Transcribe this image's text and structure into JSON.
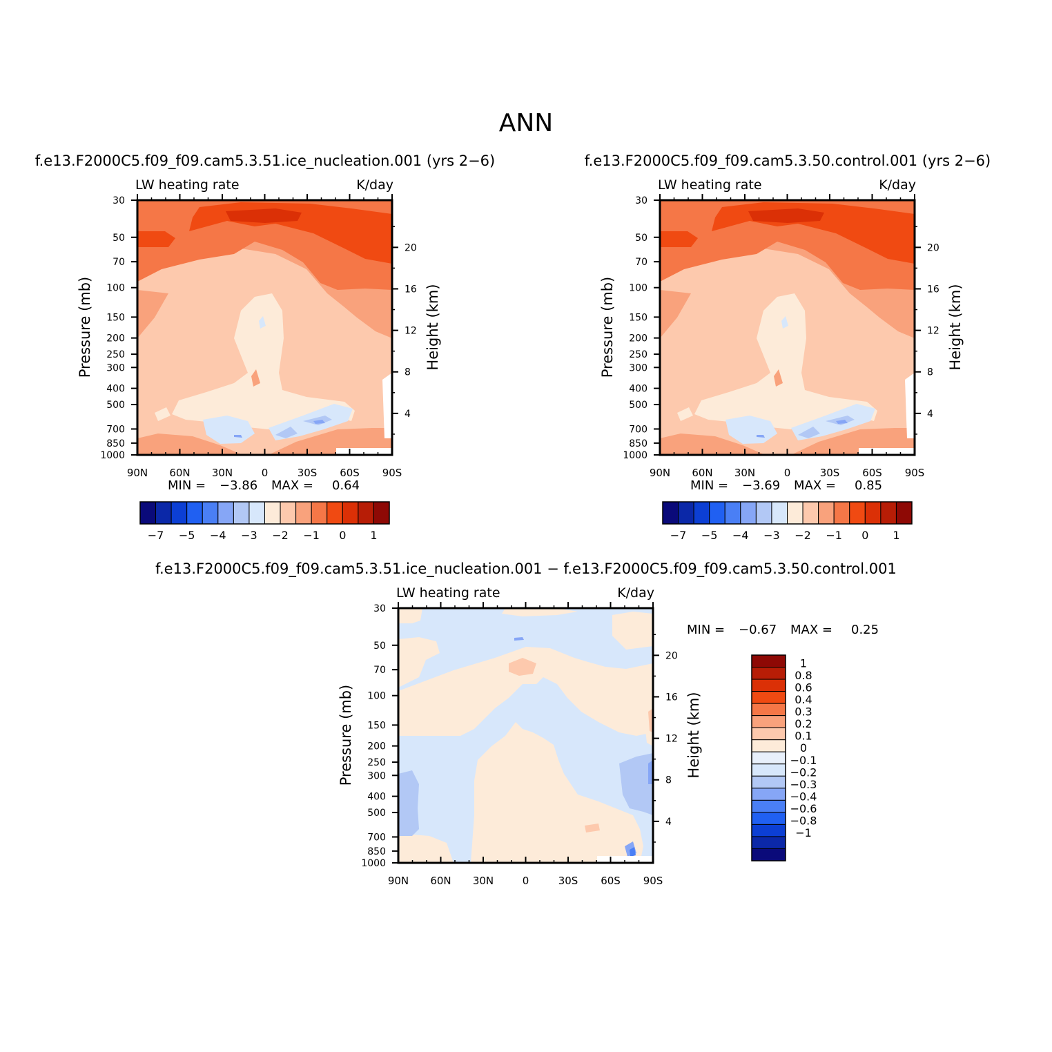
{
  "page": {
    "season": "ANN"
  },
  "chart_data": [
    {
      "type": "heatmap",
      "id": "p1",
      "title": "f.e13.F2000C5.f09_f09.cam5.3.51.ice_nucleation.001  (yrs  2−6)",
      "variable_label": "LW  heating  rate",
      "units_label": "K/day",
      "ylabel": "Pressure  (mb)",
      "y2label": "Height  (km)",
      "x_ticks": [
        "90N",
        "60N",
        "30N",
        "0",
        "30S",
        "60S",
        "90S"
      ],
      "x_values": [
        90,
        60,
        30,
        0,
        -30,
        -60,
        -90
      ],
      "xlim": [
        90,
        -90
      ],
      "y_scale": "log",
      "y_ticks": [
        {
          "p": 30,
          "label": "30"
        },
        {
          "p": 50,
          "label": "50"
        },
        {
          "p": 70,
          "label": "70"
        },
        {
          "p": 100,
          "label": "100"
        },
        {
          "p": 150,
          "label": "150"
        },
        {
          "p": 200,
          "label": "200"
        },
        {
          "p": 250,
          "label": "250"
        },
        {
          "p": 300,
          "label": "300"
        },
        {
          "p": 400,
          "label": "400"
        },
        {
          "p": 500,
          "label": "500"
        },
        {
          "p": 700,
          "label": "700"
        },
        {
          "p": 850,
          "label": "850"
        },
        {
          "p": 1000,
          "label": "1000"
        }
      ],
      "ylim": [
        1000,
        30
      ],
      "y2_ticks": [
        {
          "km": 20,
          "label": "20"
        },
        {
          "km": 16,
          "label": "16"
        },
        {
          "km": 12,
          "label": "12"
        },
        {
          "km": 8,
          "label": "8"
        },
        {
          "km": 4,
          "label": "4"
        }
      ],
      "min_label": "MIN  =",
      "min_value": "−3.86",
      "max_label": "MAX  =",
      "max_value": "0.64",
      "colorbar": {
        "orientation": "horizontal",
        "colors": [
          "#0a0a7a",
          "#0b28a8",
          "#0c3fd4",
          "#2060f2",
          "#4a7ff5",
          "#86a6f6",
          "#b2c8f5",
          "#d7e7fb",
          "#fdebd9",
          "#fdc9ad",
          "#f9a27c",
          "#f57747",
          "#f04a12",
          "#db3006",
          "#b71d06",
          "#8e0905"
        ],
        "tick_labels": [
          "−7",
          "−5",
          "−4",
          "−3",
          "−2",
          "−1",
          "0",
          "1"
        ],
        "tick_boundaries": [
          1,
          3,
          5,
          7,
          9,
          11,
          13,
          15
        ]
      }
    },
    {
      "type": "heatmap",
      "id": "p2",
      "title": "f.e13.F2000C5.f09_f09.cam5.3.50.control.001  (yrs  2−6)",
      "variable_label": "LW  heating  rate",
      "units_label": "K/day",
      "ylabel": "Pressure  (mb)",
      "y2label": "Height  (km)",
      "x_ticks": [
        "90N",
        "60N",
        "30N",
        "0",
        "30S",
        "60S",
        "90S"
      ],
      "x_values": [
        90,
        60,
        30,
        0,
        -30,
        -60,
        -90
      ],
      "xlim": [
        90,
        -90
      ],
      "y_scale": "log",
      "y_ticks": [
        {
          "p": 30,
          "label": "30"
        },
        {
          "p": 50,
          "label": "50"
        },
        {
          "p": 70,
          "label": "70"
        },
        {
          "p": 100,
          "label": "100"
        },
        {
          "p": 150,
          "label": "150"
        },
        {
          "p": 200,
          "label": "200"
        },
        {
          "p": 250,
          "label": "250"
        },
        {
          "p": 300,
          "label": "300"
        },
        {
          "p": 400,
          "label": "400"
        },
        {
          "p": 500,
          "label": "500"
        },
        {
          "p": 700,
          "label": "700"
        },
        {
          "p": 850,
          "label": "850"
        },
        {
          "p": 1000,
          "label": "1000"
        }
      ],
      "ylim": [
        1000,
        30
      ],
      "y2_ticks": [
        {
          "km": 20,
          "label": "20"
        },
        {
          "km": 16,
          "label": "16"
        },
        {
          "km": 12,
          "label": "12"
        },
        {
          "km": 8,
          "label": "8"
        },
        {
          "km": 4,
          "label": "4"
        }
      ],
      "min_label": "MIN  =",
      "min_value": "−3.69",
      "max_label": "MAX  =",
      "max_value": "0.85",
      "colorbar": {
        "orientation": "horizontal",
        "colors": [
          "#0a0a7a",
          "#0b28a8",
          "#0c3fd4",
          "#2060f2",
          "#4a7ff5",
          "#86a6f6",
          "#b2c8f5",
          "#d7e7fb",
          "#fdebd9",
          "#fdc9ad",
          "#f9a27c",
          "#f57747",
          "#f04a12",
          "#db3006",
          "#b71d06",
          "#8e0905"
        ],
        "tick_labels": [
          "−7",
          "−5",
          "−4",
          "−3",
          "−2",
          "−1",
          "0",
          "1"
        ],
        "tick_boundaries": [
          1,
          3,
          5,
          7,
          9,
          11,
          13,
          15
        ]
      }
    },
    {
      "type": "heatmap",
      "id": "p3",
      "title": "f.e13.F2000C5.f09_f09.cam5.3.51.ice_nucleation.001  −  f.e13.F2000C5.f09_f09.cam5.3.50.control.001",
      "variable_label": "LW  heating  rate",
      "units_label": "K/day",
      "ylabel": "Pressure  (mb)",
      "y2label": "Height  (km)",
      "x_ticks": [
        "90N",
        "60N",
        "30N",
        "0",
        "30S",
        "60S",
        "90S"
      ],
      "x_values": [
        90,
        60,
        30,
        0,
        -30,
        -60,
        -90
      ],
      "xlim": [
        90,
        -90
      ],
      "y_scale": "log",
      "y_ticks": [
        {
          "p": 30,
          "label": "30"
        },
        {
          "p": 50,
          "label": "50"
        },
        {
          "p": 70,
          "label": "70"
        },
        {
          "p": 100,
          "label": "100"
        },
        {
          "p": 150,
          "label": "150"
        },
        {
          "p": 200,
          "label": "200"
        },
        {
          "p": 250,
          "label": "250"
        },
        {
          "p": 300,
          "label": "300"
        },
        {
          "p": 400,
          "label": "400"
        },
        {
          "p": 500,
          "label": "500"
        },
        {
          "p": 700,
          "label": "700"
        },
        {
          "p": 850,
          "label": "850"
        },
        {
          "p": 1000,
          "label": "1000"
        }
      ],
      "ylim": [
        1000,
        30
      ],
      "y2_ticks": [
        {
          "km": 20,
          "label": "20"
        },
        {
          "km": 16,
          "label": "16"
        },
        {
          "km": 12,
          "label": "12"
        },
        {
          "km": 8,
          "label": "8"
        },
        {
          "km": 4,
          "label": "4"
        }
      ],
      "min_label": "MIN  =",
      "min_value": "−0.67",
      "max_label": "MAX  =",
      "max_value": "0.25",
      "colorbar": {
        "orientation": "vertical",
        "colors_top_to_bottom": [
          "#8e0905",
          "#b71d06",
          "#db3006",
          "#f04a12",
          "#f57747",
          "#f9a27c",
          "#fdc9ad",
          "#fdebd9",
          "#e8f0fb",
          "#d7e7fb",
          "#b2c8f5",
          "#86a6f6",
          "#4a7ff5",
          "#2060f2",
          "#0c3fd4",
          "#0b28a8",
          "#0a0a7a"
        ],
        "tick_labels": [
          "1",
          "0.8",
          "0.6",
          "0.4",
          "0.3",
          "0.2",
          "0.1",
          "0",
          "−0.1",
          "−0.2",
          "−0.3",
          "−0.4",
          "−0.6",
          "−0.8",
          "−1"
        ]
      }
    }
  ]
}
